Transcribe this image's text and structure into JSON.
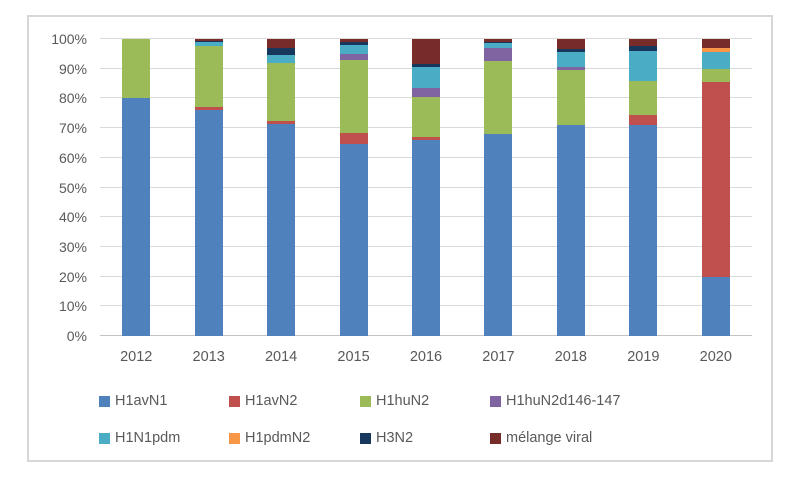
{
  "chart_data": {
    "type": "bar",
    "subtype": "stacked-100-percent",
    "title": "",
    "xlabel": "",
    "ylabel": "",
    "ylim": [
      0,
      100
    ],
    "grid": true,
    "legend_position": "bottom",
    "y_ticks": [
      "0%",
      "10%",
      "20%",
      "30%",
      "40%",
      "50%",
      "60%",
      "70%",
      "80%",
      "90%",
      "100%"
    ],
    "categories": [
      "2012",
      "2013",
      "2014",
      "2015",
      "2016",
      "2017",
      "2018",
      "2019",
      "2020"
    ],
    "series": [
      {
        "name": "H1avN1",
        "color": "#4F81BD",
        "values": [
          80,
          76,
          71.5,
          64.5,
          66,
          68,
          71,
          71,
          20
        ]
      },
      {
        "name": "H1avN2",
        "color": "#C0504D",
        "values": [
          0,
          1,
          1,
          4,
          1,
          0,
          0,
          3.5,
          65.5
        ]
      },
      {
        "name": "H1huN2",
        "color": "#9BBB59",
        "values": [
          20,
          20.5,
          19.5,
          24.5,
          13.5,
          24.5,
          18.5,
          11.5,
          4.5
        ]
      },
      {
        "name": "H1huN2d146-147",
        "color": "#8064A2",
        "values": [
          0,
          0,
          0,
          2,
          3,
          4.5,
          1,
          0,
          0
        ]
      },
      {
        "name": "H1N1pdm",
        "color": "#4BACC6",
        "values": [
          0,
          1.5,
          2.5,
          3,
          7,
          1.5,
          5,
          10,
          5.5
        ]
      },
      {
        "name": "H1pdmN2",
        "color": "#F79646",
        "values": [
          0,
          0,
          0,
          0,
          0,
          0,
          0,
          0,
          1.5
        ]
      },
      {
        "name": "H3N2",
        "color": "#17375D",
        "values": [
          0,
          0.5,
          2.5,
          1,
          1,
          0.5,
          1,
          1.5,
          0
        ]
      },
      {
        "name": "mélange viral",
        "color": "#772C2A",
        "values": [
          0,
          0.5,
          3,
          1,
          8.5,
          1,
          3.5,
          2.5,
          3
        ]
      }
    ],
    "legend_rows": [
      [
        "H1avN1",
        "H1avN2",
        "H1huN2",
        "H1huN2d146-147"
      ],
      [
        "H1N1pdm",
        "H1pdmN2",
        "H3N2",
        "mélange viral"
      ]
    ]
  },
  "colors": {
    "figure_border": "#d7d7d7",
    "gridline": "#d9d9d9",
    "axis_text": "#595959",
    "background": "#ffffff"
  }
}
